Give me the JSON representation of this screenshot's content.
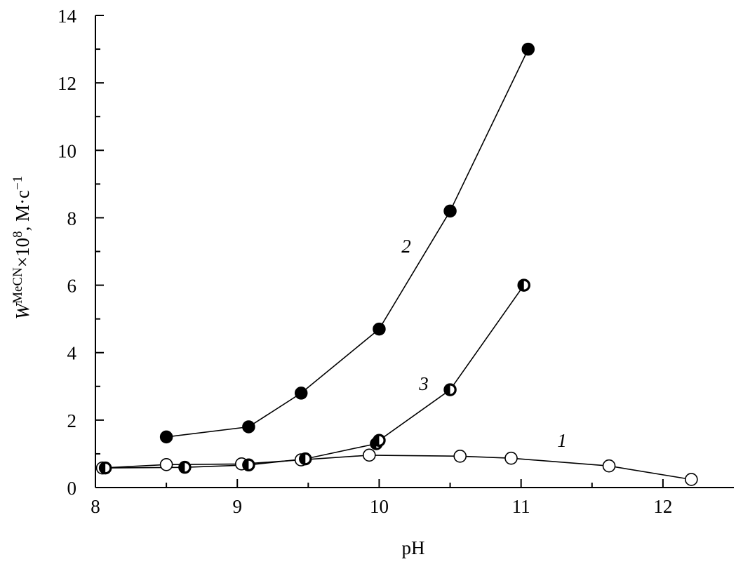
{
  "chart_data": {
    "type": "line",
    "xlabel": "pH",
    "ylabel": {
      "symbol": "W",
      "superscript": "MeCN",
      "multiplier": "×10",
      "exponent": "8",
      "unit": ", M·c",
      "unit_exponent": "−1"
    },
    "xlim": [
      8,
      12.5
    ],
    "ylim": [
      0,
      14
    ],
    "xticks": [
      "8",
      "9",
      "10",
      "11",
      "12"
    ],
    "yticks": [
      "0",
      "2",
      "4",
      "6",
      "8",
      "10",
      "12",
      "14"
    ],
    "grid": false,
    "series": [
      {
        "name": "1",
        "marker": "open-circle",
        "x": [
          8.05,
          8.5,
          9.03,
          9.45,
          9.93,
          10.57,
          10.93,
          11.62,
          12.2
        ],
        "y": [
          0.58,
          0.68,
          0.7,
          0.82,
          0.96,
          0.93,
          0.87,
          0.64,
          0.24
        ]
      },
      {
        "name": "2",
        "marker": "filled-circle",
        "x": [
          8.5,
          9.08,
          9.45,
          10.0,
          10.5,
          11.05
        ],
        "y": [
          1.5,
          1.8,
          2.8,
          4.7,
          8.2,
          13.0
        ]
      },
      {
        "name": "3",
        "marker": "half-filled-circle",
        "x": [
          8.07,
          8.63,
          9.08,
          9.48,
          9.98,
          10.0,
          10.5,
          11.02
        ],
        "y": [
          0.58,
          0.6,
          0.67,
          0.85,
          1.3,
          1.4,
          2.9,
          6.0
        ]
      }
    ],
    "annotations": [
      {
        "text": "1",
        "series": "1"
      },
      {
        "text": "2",
        "series": "2"
      },
      {
        "text": "3",
        "series": "3"
      }
    ]
  }
}
